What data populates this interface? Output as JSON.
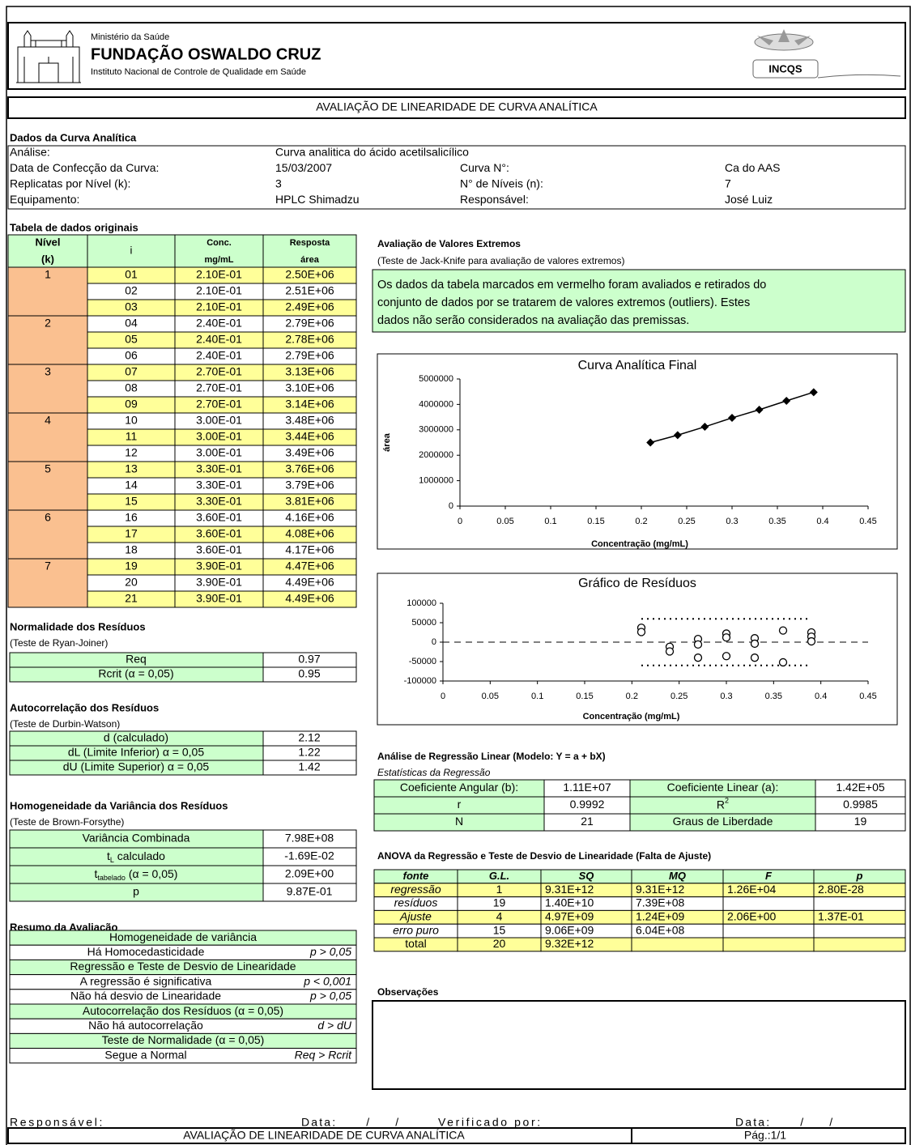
{
  "header": {
    "ministry": "Ministério da Saúde",
    "foundation": "FUNDAÇÃO OSWALDO CRUZ",
    "institute": "Instituto Nacional de Controle de Qualidade em Saúde",
    "logo_text": "INCQS"
  },
  "title": "AVALIAÇÃO DE LINEARIDADE DE CURVA ANALÍTICA",
  "curve_info": {
    "heading": "Dados da Curva Analítica",
    "rows": [
      [
        "Análise:",
        "Curva analitica do ácido acetilsalicílico"
      ],
      [
        "Data de Confecção da Curva:",
        "15/03/2007",
        "Curva N°:",
        "Ca do AAS"
      ],
      [
        "Replicatas por Nível (k):",
        "3",
        "N° de Níveis (n):",
        "7"
      ],
      [
        "Equipamento:",
        "HPLC Shimadzu",
        "Responsável:",
        "José Luiz"
      ]
    ]
  },
  "data_table": {
    "heading": "Tabela de dados originais",
    "columns": [
      [
        "Nível",
        "(k)"
      ],
      [
        "i"
      ],
      [
        "Conc.",
        "mg/mL"
      ],
      [
        "Resposta",
        "área"
      ]
    ],
    "levels": [
      "1",
      "2",
      "3",
      "4",
      "5",
      "6",
      "7"
    ],
    "rows": [
      [
        "01",
        "2.10E-01",
        "2.50E+06"
      ],
      [
        "02",
        "2.10E-01",
        "2.51E+06"
      ],
      [
        "03",
        "2.10E-01",
        "2.49E+06"
      ],
      [
        "04",
        "2.40E-01",
        "2.79E+06"
      ],
      [
        "05",
        "2.40E-01",
        "2.78E+06"
      ],
      [
        "06",
        "2.40E-01",
        "2.79E+06"
      ],
      [
        "07",
        "2.70E-01",
        "3.13E+06"
      ],
      [
        "08",
        "2.70E-01",
        "3.10E+06"
      ],
      [
        "09",
        "2.70E-01",
        "3.14E+06"
      ],
      [
        "10",
        "3.00E-01",
        "3.48E+06"
      ],
      [
        "11",
        "3.00E-01",
        "3.44E+06"
      ],
      [
        "12",
        "3.00E-01",
        "3.49E+06"
      ],
      [
        "13",
        "3.30E-01",
        "3.76E+06"
      ],
      [
        "14",
        "3.30E-01",
        "3.79E+06"
      ],
      [
        "15",
        "3.30E-01",
        "3.81E+06"
      ],
      [
        "16",
        "3.60E-01",
        "4.16E+06"
      ],
      [
        "17",
        "3.60E-01",
        "4.08E+06"
      ],
      [
        "18",
        "3.60E-01",
        "4.17E+06"
      ],
      [
        "19",
        "3.90E-01",
        "4.47E+06"
      ],
      [
        "20",
        "3.90E-01",
        "4.49E+06"
      ],
      [
        "21",
        "3.90E-01",
        "4.49E+06"
      ]
    ]
  },
  "extremes": {
    "heading": "Avaliação de Valores Extremos",
    "subheading": "(Teste de Jack-Knife para avaliação de valores extremos)",
    "note_lines": [
      "Os dados da tabela marcados em vermelho foram avaliados e retirados do",
      "conjunto de dados por se tratarem de valores extremos (outliers). Estes",
      "dados não serão considerados na avaliação das premissas."
    ]
  },
  "normality": {
    "heading": "Normalidade dos Resíduos",
    "subheading": "(Teste de Ryan-Joiner)",
    "rows": [
      [
        "Req",
        "0.97"
      ],
      [
        "Rcrit (α = 0,05)",
        "0.95"
      ]
    ]
  },
  "autocorrelation": {
    "heading": "Autocorrelação dos Resíduos",
    "subheading": "(Teste de Durbin-Watson)",
    "rows": [
      [
        "d (calculado)",
        "2.12"
      ],
      [
        "dL (Limite Inferior) α = 0,05",
        "1.22"
      ],
      [
        "dU (Limite Superior) α = 0,05",
        "1.42"
      ]
    ]
  },
  "homogeneity": {
    "heading": "Homogeneidade da Variância dos Resíduos",
    "subheading": "(Teste de Brown-Forsythe)",
    "rows": [
      [
        "Variância Combinada",
        "7.98E+08"
      ],
      [
        [
          "t",
          "L",
          " calculado"
        ],
        "-1.69E-02"
      ],
      [
        [
          "t",
          "tabelado",
          " (α = 0,05)"
        ],
        "2.09E+00"
      ],
      [
        "p",
        "9.87E-01"
      ]
    ]
  },
  "summary": {
    "heading": "Resumo da Avaliação",
    "rows": [
      [
        "Homogeneidade de variância"
      ],
      [
        "Há Homocedasticidade",
        "p > 0,05"
      ],
      [
        "Regressão e Teste de Desvio de Linearidade"
      ],
      [
        "A regressão é significativa",
        "p < 0,001"
      ],
      [
        "Não há desvio de Linearidade",
        "p > 0,05"
      ],
      [
        "Autocorrelação dos Resíduos (α = 0,05)"
      ],
      [
        "Não há autocorrelação",
        "d > dU"
      ],
      [
        "Teste de Normalidade (α = 0,05)"
      ],
      [
        "Segue a Normal",
        "Req > Rcrit"
      ]
    ]
  },
  "regression": {
    "heading": "Análise de Regressão Linear (Modelo: Y = a + bX)",
    "subheading": "Estatísticas da Regressão",
    "rows": [
      [
        "Coeficiente Angular (b):",
        "1.11E+07",
        "Coeficiente Linear (a):",
        "1.42E+05"
      ],
      [
        "r",
        "0.9992",
        [
          "R",
          "2"
        ],
        "0.9985"
      ],
      [
        "N",
        "21",
        "Graus de Liberdade",
        "19"
      ]
    ]
  },
  "anova": {
    "heading": "ANOVA da Regressão e Teste de Desvio de Linearidade (Falta de Ajuste)",
    "columns": [
      "fonte",
      "G.L.",
      "SQ",
      "MQ",
      "F",
      "p"
    ],
    "rows": [
      [
        "regressão",
        "1",
        "9.31E+12",
        "9.31E+12",
        "1.26E+04",
        "2.80E-28"
      ],
      [
        "resíduos",
        "19",
        "1.40E+10",
        "7.39E+08",
        null,
        null
      ],
      [
        "Ajuste",
        "4",
        "4.97E+09",
        "1.24E+09",
        "2.06E+00",
        "1.37E-01"
      ],
      [
        "erro puro",
        "15",
        "9.06E+09",
        "6.04E+08",
        null,
        null
      ],
      [
        "total",
        "20",
        "9.32E+12",
        null,
        null,
        null
      ]
    ]
  },
  "observations": {
    "heading": "Observações"
  },
  "signatures": [
    "Responsável:______________________",
    "Data: ___/___/___",
    "Verificado por:______________________",
    "Data: ___/___/___"
  ],
  "footer": {
    "title": "AVALIAÇÃO DE LINEARIDADE DE CURVA ANALÍTICA",
    "page": "Pág.:1/1"
  },
  "chart_data": [
    {
      "type": "line",
      "title": "Curva Analítica Final",
      "x_label": "Concentração (mg/mL)",
      "y_label": "área",
      "x": [
        0.21,
        0.24,
        0.27,
        0.3,
        0.33,
        0.36,
        0.39
      ],
      "values": [
        2500000,
        2790000,
        3120000,
        3470000,
        3790000,
        4140000,
        4480000
      ],
      "color": "#000000",
      "xlim": [
        0,
        0.45
      ],
      "xticks": [
        0,
        0.05,
        0.1,
        0.15,
        0.2,
        0.25,
        0.3,
        0.35,
        0.4,
        0.45
      ],
      "ylim": [
        0,
        5000000
      ],
      "yticks": [
        0,
        1000000,
        2000000,
        3000000,
        4000000,
        5000000
      ]
    },
    {
      "type": "scatter",
      "title": "Gráfico de Resíduos",
      "x_label": "Concentração (mg/mL)",
      "x": [
        0.21,
        0.21,
        0.24,
        0.24,
        0.27,
        0.27,
        0.27,
        0.3,
        0.3,
        0.3,
        0.33,
        0.33,
        0.33,
        0.36,
        0.36,
        0.39,
        0.39,
        0.39
      ],
      "values": [
        37000,
        26000,
        -12000,
        -24000,
        8000,
        -6000,
        -40000,
        22000,
        12000,
        -36000,
        10000,
        -4000,
        -40000,
        30000,
        -52000,
        25000,
        14000,
        2000
      ],
      "color": "#000000",
      "reference_line": 0,
      "limits": [
        60000,
        -60000
      ],
      "limits_x": [
        0.21,
        0.39
      ],
      "xlim": [
        0,
        0.45
      ],
      "xticks": [
        0,
        0.05,
        0.1,
        0.15,
        0.2,
        0.25,
        0.3,
        0.35,
        0.4,
        0.45
      ],
      "ylim": [
        -100000,
        100000
      ],
      "yticks": [
        -100000,
        -50000,
        0,
        50000,
        100000
      ]
    }
  ]
}
